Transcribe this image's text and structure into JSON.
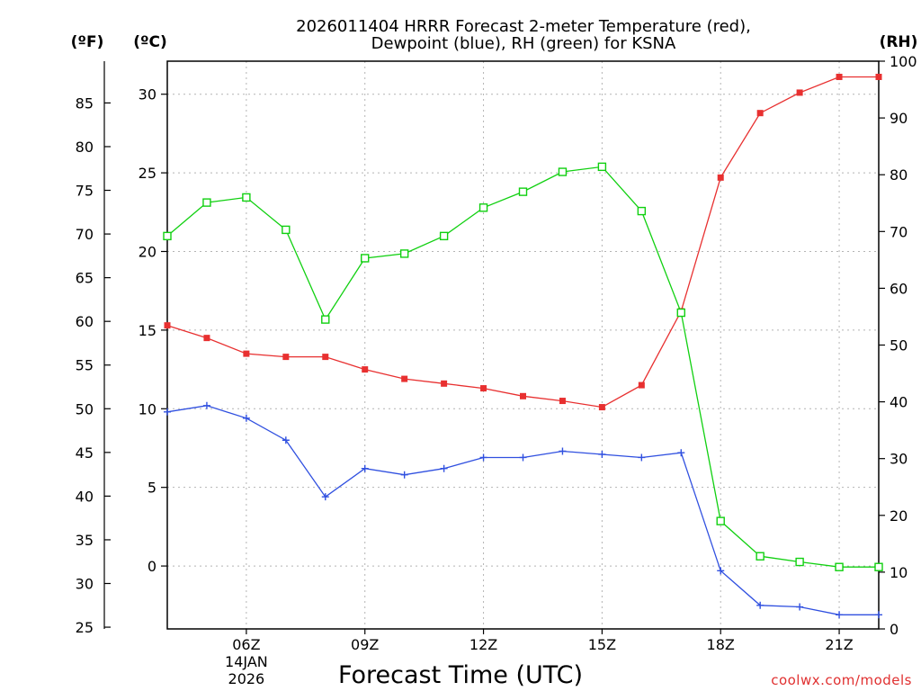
{
  "chart_data": {
    "type": "line",
    "title_lines": [
      "2026011404 HRRR Forecast 2-meter Temperature (red),",
      "Dewpoint (blue), RH (green) for KSNA"
    ],
    "xlabel": "Forecast Time (UTC)",
    "credit": "coolwx.com/models",
    "units": {
      "fahrenheit": "(ºF)",
      "celsius": "(ºC)",
      "rh": "(RH)"
    },
    "x": [
      4,
      5,
      6,
      7,
      8,
      9,
      10,
      11,
      12,
      13,
      14,
      15,
      16,
      17,
      18,
      19,
      20,
      21,
      22
    ],
    "xlim": [
      4,
      22
    ],
    "x_ticks": [
      {
        "x": 6,
        "label": "06Z",
        "sub1": "14JAN",
        "sub2": "2026"
      },
      {
        "x": 9,
        "label": "09Z"
      },
      {
        "x": 12,
        "label": "12Z"
      },
      {
        "x": 15,
        "label": "15Z"
      },
      {
        "x": 18,
        "label": "18Z"
      },
      {
        "x": 21,
        "label": "21Z"
      }
    ],
    "celsius_axis": {
      "lim": [
        -4,
        32.1
      ],
      "ticks": [
        "0",
        "5",
        "10",
        "15",
        "20",
        "25",
        "30"
      ]
    },
    "fahrenheit_axis": {
      "ticks": [
        "25",
        "30",
        "35",
        "40",
        "45",
        "50",
        "55",
        "60",
        "65",
        "70",
        "75",
        "80",
        "85"
      ]
    },
    "rh_axis": {
      "lim": [
        0,
        100
      ],
      "ticks": [
        "0",
        "10",
        "20",
        "30",
        "40",
        "50",
        "60",
        "70",
        "80",
        "90",
        "100"
      ]
    },
    "grid": true,
    "series": [
      {
        "name": "2-meter Temperature",
        "axis": "celsius",
        "color": "#e83030",
        "marker": "filled-square",
        "values": [
          15.3,
          14.5,
          13.5,
          13.3,
          13.3,
          12.5,
          11.9,
          11.6,
          11.3,
          10.8,
          10.5,
          10.1,
          11.5,
          16.2,
          24.7,
          28.8,
          30.1,
          31.1,
          31.1
        ]
      },
      {
        "name": "Dewpoint",
        "axis": "celsius",
        "color": "#3050e0",
        "marker": "plus",
        "values": [
          9.8,
          10.2,
          9.4,
          8.0,
          4.4,
          6.2,
          5.8,
          6.2,
          6.9,
          6.9,
          7.3,
          7.1,
          6.9,
          7.2,
          -0.3,
          -2.5,
          -2.6,
          -3.1,
          -3.1
        ]
      },
      {
        "name": "RH",
        "axis": "rh",
        "color": "#10d010",
        "marker": "open-square",
        "values": [
          69.2,
          75.1,
          76.0,
          70.3,
          54.5,
          65.3,
          66.1,
          69.2,
          74.2,
          77.0,
          80.5,
          81.4,
          73.6,
          55.7,
          19.0,
          12.8,
          11.8,
          10.9,
          10.9
        ]
      }
    ]
  }
}
